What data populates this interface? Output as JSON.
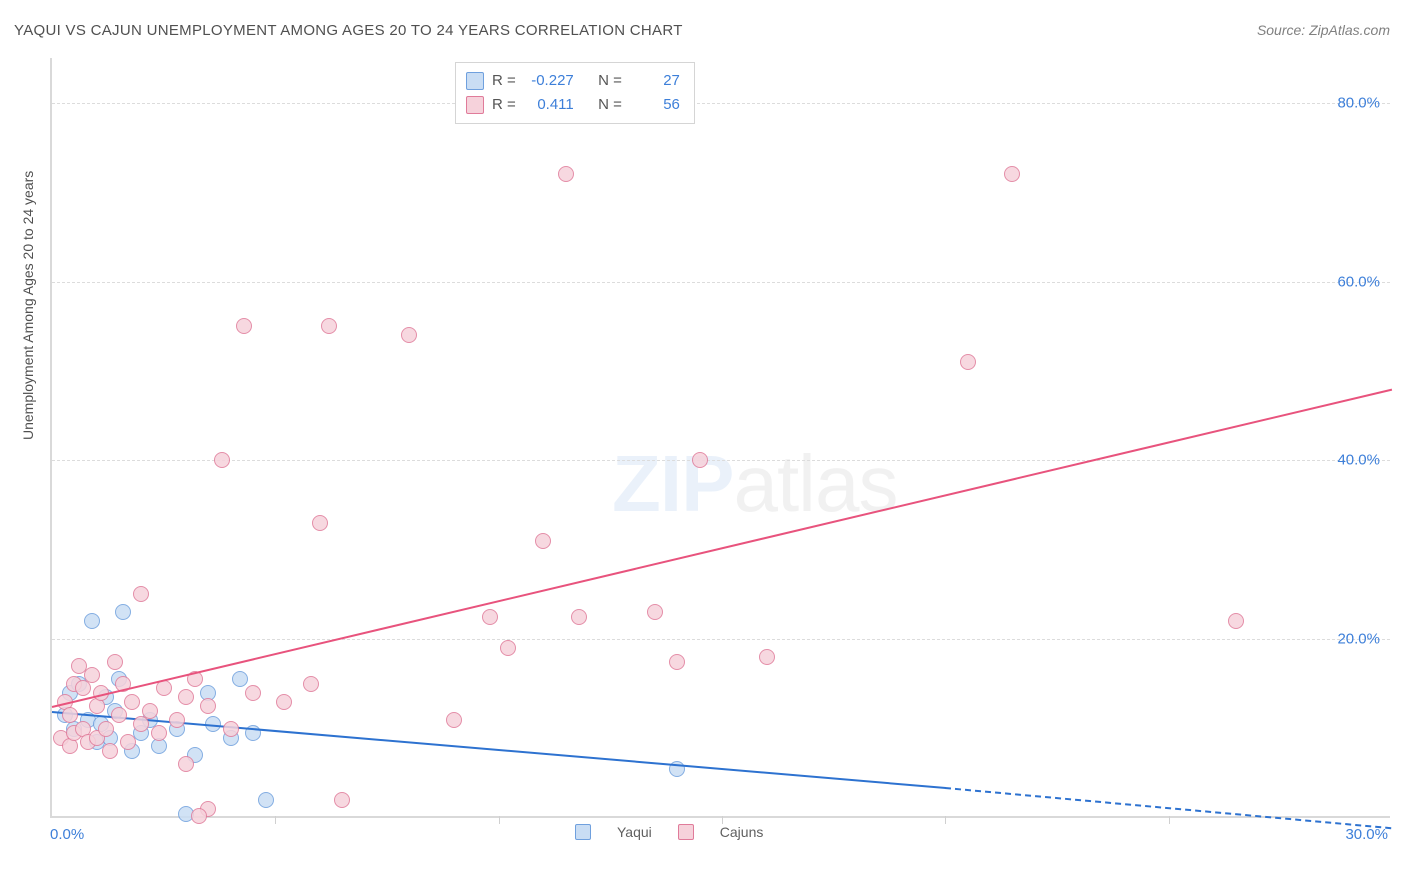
{
  "title": "YAQUI VS CAJUN UNEMPLOYMENT AMONG AGES 20 TO 24 YEARS CORRELATION CHART",
  "source": "Source: ZipAtlas.com",
  "ylabel": "Unemployment Among Ages 20 to 24 years",
  "watermark": {
    "zip": "ZIP",
    "atlas": "atlas"
  },
  "chart": {
    "type": "scatter",
    "xlim": [
      0,
      30
    ],
    "ylim": [
      0,
      85
    ],
    "xtick_labels": {
      "min": "0.0%",
      "max": "30.0%"
    },
    "xtick_positions": [
      0,
      5,
      10,
      15,
      20,
      25,
      30
    ],
    "yticks": [
      {
        "value": 20,
        "label": "20.0%"
      },
      {
        "value": 40,
        "label": "40.0%"
      },
      {
        "value": 60,
        "label": "60.0%"
      },
      {
        "value": 80,
        "label": "80.0%"
      }
    ],
    "background_color": "#ffffff",
    "grid_color": "#dcdcdc",
    "axis_color": "#d9d9d9",
    "axis_label_color": "#3d7fd9",
    "point_radius": 8,
    "series": [
      {
        "name": "Yaqui",
        "fill": "#c9ddf4",
        "stroke": "#6fa0de",
        "line_color": "#2d72d0",
        "R": "-0.227",
        "N": "27",
        "trend": {
          "x1": 0,
          "y1": 12.0,
          "x2": 20,
          "y2": 3.5,
          "dash_extend_x": 30,
          "dash_y": -1
        },
        "points": [
          [
            0.3,
            11.5
          ],
          [
            0.4,
            14.0
          ],
          [
            0.5,
            10.0
          ],
          [
            0.6,
            15.0
          ],
          [
            0.8,
            11.0
          ],
          [
            0.9,
            22.0
          ],
          [
            1.0,
            8.5
          ],
          [
            1.1,
            10.5
          ],
          [
            1.2,
            13.5
          ],
          [
            1.3,
            9.0
          ],
          [
            1.4,
            12.0
          ],
          [
            1.5,
            15.5
          ],
          [
            1.6,
            23.0
          ],
          [
            1.8,
            7.5
          ],
          [
            2.0,
            9.5
          ],
          [
            2.2,
            11.0
          ],
          [
            2.4,
            8.0
          ],
          [
            2.8,
            10.0
          ],
          [
            3.0,
            0.5
          ],
          [
            3.2,
            7.0
          ],
          [
            3.5,
            14.0
          ],
          [
            3.6,
            10.5
          ],
          [
            4.0,
            9.0
          ],
          [
            4.2,
            15.5
          ],
          [
            4.8,
            2.0
          ],
          [
            4.5,
            9.5
          ],
          [
            14.0,
            5.5
          ]
        ]
      },
      {
        "name": "Cajuns",
        "fill": "#f6d2db",
        "stroke": "#e07b9a",
        "line_color": "#e8537d",
        "R": "0.411",
        "N": "56",
        "trend": {
          "x1": 0,
          "y1": 12.5,
          "x2": 30,
          "y2": 48.0
        },
        "points": [
          [
            0.2,
            9.0
          ],
          [
            0.3,
            13.0
          ],
          [
            0.4,
            8.0
          ],
          [
            0.4,
            11.5
          ],
          [
            0.5,
            15.0
          ],
          [
            0.5,
            9.5
          ],
          [
            0.6,
            17.0
          ],
          [
            0.7,
            14.5
          ],
          [
            0.7,
            10.0
          ],
          [
            0.8,
            8.5
          ],
          [
            0.9,
            16.0
          ],
          [
            1.0,
            12.5
          ],
          [
            1.0,
            9.0
          ],
          [
            1.1,
            14.0
          ],
          [
            1.2,
            10.0
          ],
          [
            1.3,
            7.5
          ],
          [
            1.4,
            17.5
          ],
          [
            1.5,
            11.5
          ],
          [
            1.6,
            15.0
          ],
          [
            1.7,
            8.5
          ],
          [
            1.8,
            13.0
          ],
          [
            2.0,
            10.5
          ],
          [
            2.0,
            25.0
          ],
          [
            2.2,
            12.0
          ],
          [
            2.4,
            9.5
          ],
          [
            2.5,
            14.5
          ],
          [
            2.8,
            11.0
          ],
          [
            3.0,
            13.5
          ],
          [
            3.0,
            6.0
          ],
          [
            3.2,
            15.5
          ],
          [
            3.5,
            12.5
          ],
          [
            3.5,
            1.0
          ],
          [
            3.8,
            40.0
          ],
          [
            4.0,
            10.0
          ],
          [
            4.3,
            55.0
          ],
          [
            4.5,
            14.0
          ],
          [
            5.2,
            13.0
          ],
          [
            5.8,
            15.0
          ],
          [
            6.0,
            33.0
          ],
          [
            6.2,
            55.0
          ],
          [
            6.5,
            2.0
          ],
          [
            8.0,
            54.0
          ],
          [
            9.0,
            11.0
          ],
          [
            9.8,
            22.5
          ],
          [
            10.2,
            19.0
          ],
          [
            11.0,
            31.0
          ],
          [
            11.5,
            72.0
          ],
          [
            11.8,
            22.5
          ],
          [
            13.5,
            23.0
          ],
          [
            14.0,
            17.5
          ],
          [
            14.5,
            40.0
          ],
          [
            16.0,
            18.0
          ],
          [
            20.5,
            51.0
          ],
          [
            21.5,
            72.0
          ],
          [
            26.5,
            22.0
          ],
          [
            3.3,
            0.2
          ]
        ]
      }
    ]
  },
  "stat_legend": {
    "R_label": "R =",
    "N_label": "N ="
  },
  "series_legend": [
    "Yaqui",
    "Cajuns"
  ]
}
